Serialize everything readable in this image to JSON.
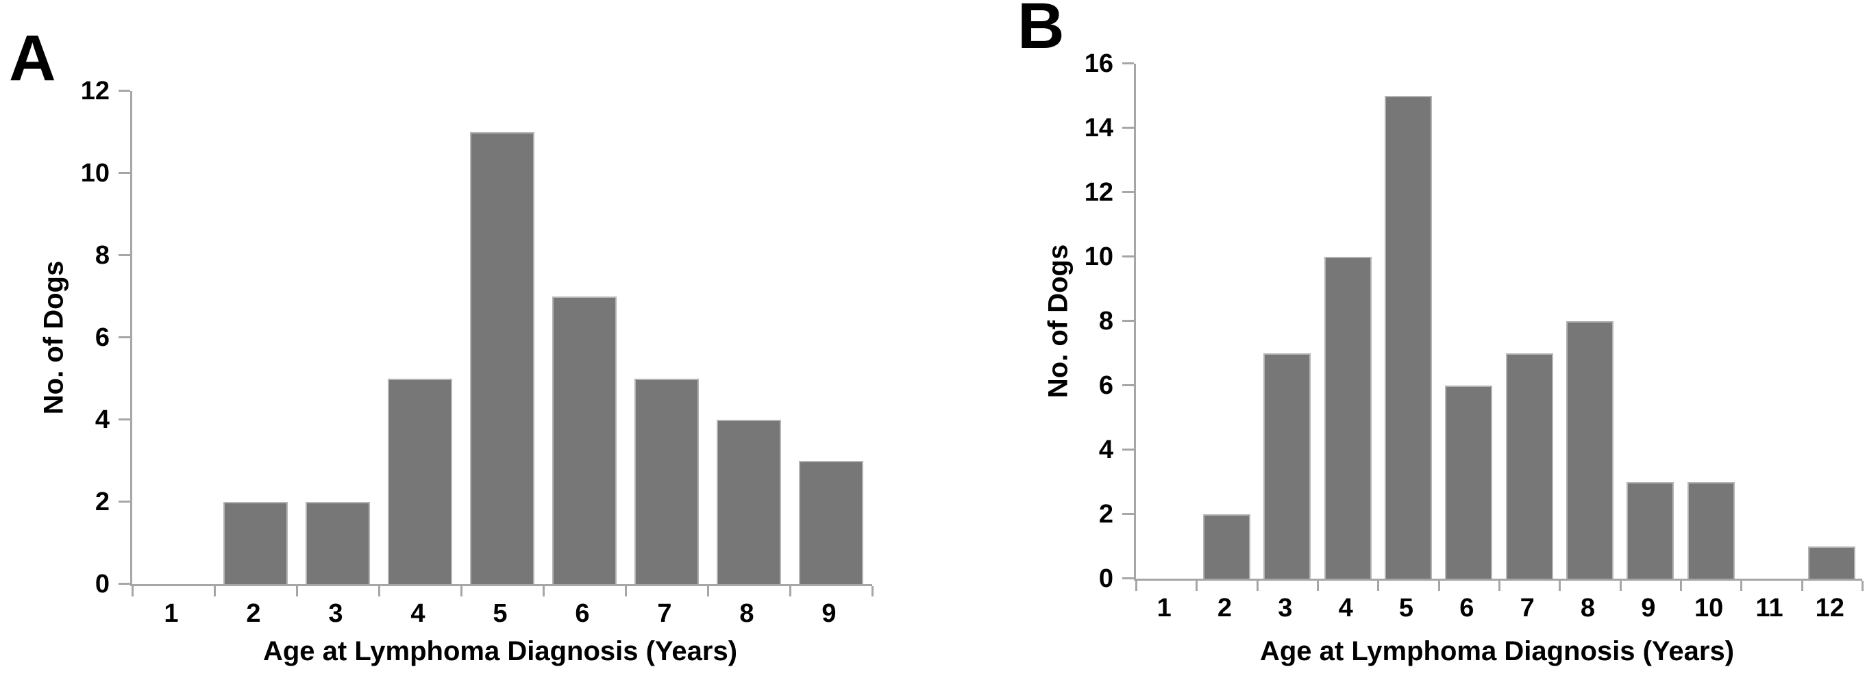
{
  "figure": {
    "bar_color": "#777777",
    "axis_color": "#a6a6a6",
    "text_color": "#000000"
  },
  "chart_data": [
    {
      "type": "bar",
      "panel_label": "A",
      "title": "",
      "xlabel": "Age at Lymphoma Diagnosis (Years)",
      "ylabel": "No. of Dogs",
      "categories": [
        "1",
        "2",
        "3",
        "4",
        "5",
        "6",
        "7",
        "8",
        "9"
      ],
      "values": [
        0,
        2,
        2,
        5,
        11,
        7,
        5,
        4,
        3
      ],
      "ylim": [
        0,
        12
      ],
      "ytick_step": 2,
      "yticks": [
        0,
        2,
        4,
        6,
        8,
        10,
        12
      ],
      "grid": false,
      "legend": null
    },
    {
      "type": "bar",
      "panel_label": "B",
      "title": "",
      "xlabel": "Age at Lymphoma Diagnosis (Years)",
      "ylabel": "No. of Dogs",
      "categories": [
        "1",
        "2",
        "3",
        "4",
        "5",
        "6",
        "7",
        "8",
        "9",
        "10",
        "11",
        "12"
      ],
      "values": [
        0,
        2,
        7,
        10,
        15,
        6,
        7,
        8,
        3,
        3,
        0,
        1
      ],
      "ylim": [
        0,
        16
      ],
      "ytick_step": 2,
      "yticks": [
        0,
        2,
        4,
        6,
        8,
        10,
        12,
        14,
        16
      ],
      "grid": false,
      "legend": null
    }
  ]
}
